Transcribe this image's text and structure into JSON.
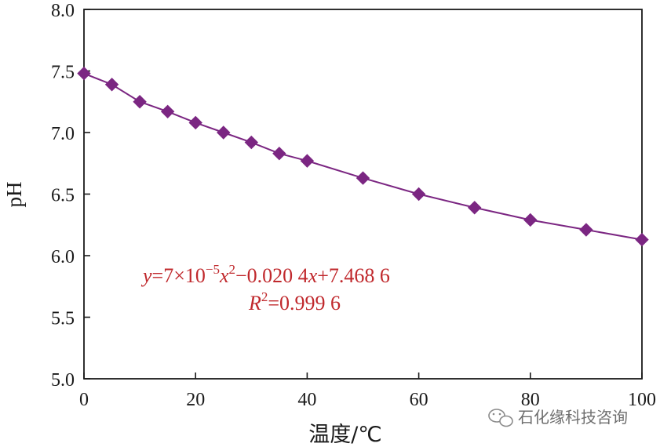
{
  "chart_data": {
    "type": "line",
    "title": "",
    "xlabel": "温度/℃",
    "ylabel": "pH",
    "xlim": [
      0,
      100
    ],
    "ylim": [
      5.0,
      8.0
    ],
    "xticks": [
      0,
      20,
      40,
      60,
      80,
      100
    ],
    "xtick_labels": [
      "0",
      "20",
      "40",
      "60",
      "80",
      "100"
    ],
    "yticks": [
      5.0,
      5.5,
      6.0,
      6.5,
      7.0,
      7.5,
      8.0
    ],
    "ytick_labels": [
      "5.0",
      "5.5",
      "6.0",
      "6.5",
      "7.0",
      "7.5",
      "8.0"
    ],
    "grid": false,
    "series": [
      {
        "marker": "diamond",
        "color": "#7b2682",
        "x": [
          0,
          5,
          10,
          15,
          20,
          25,
          30,
          35,
          40,
          50,
          60,
          70,
          80,
          90,
          100
        ],
        "y": [
          7.48,
          7.39,
          7.25,
          7.17,
          7.08,
          7.0,
          6.92,
          6.83,
          6.77,
          6.63,
          6.5,
          6.39,
          6.29,
          6.21,
          6.13
        ]
      }
    ],
    "annotation": {
      "equation_parts": [
        "y",
        "=7×10",
        "−5",
        "x",
        "2",
        "−0.020 4",
        "x",
        "+7.468 6"
      ],
      "r2_parts": [
        "R",
        "2",
        "=0.999 6"
      ],
      "color": "#c0282c"
    }
  },
  "watermark": {
    "text": "石化缘科技咨询",
    "icon": "wechat-icon"
  }
}
